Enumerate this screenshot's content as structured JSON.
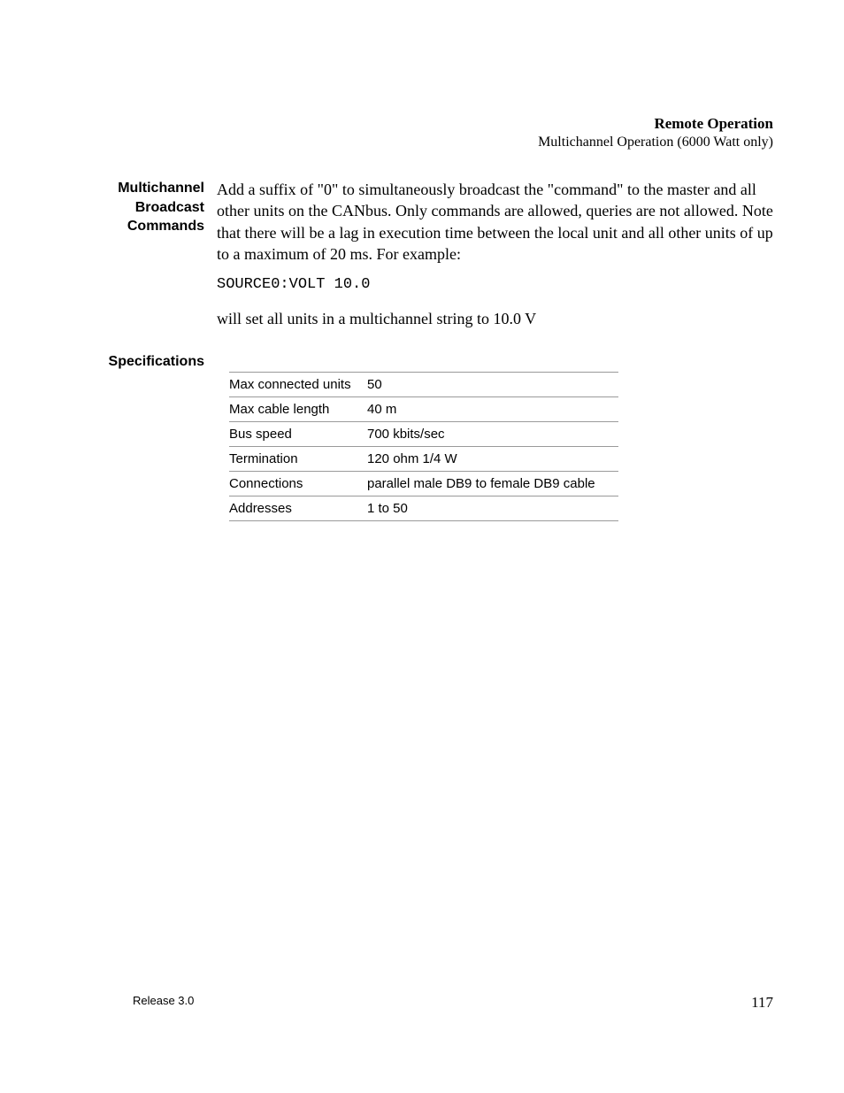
{
  "header": {
    "title": "Remote Operation",
    "subtitle": "Multichannel Operation (6000 Watt only)"
  },
  "section_broadcast": {
    "heading": "Multichannel Broadcast Commands",
    "para1": "Add a suffix of \"0\" to simultaneously broadcast the \"command\" to the master and all other units on the CANbus. Only commands are allowed, queries are not allowed. Note that there will be a lag in execution time between the local unit and all other units of up to a maximum of 20 ms. For example:",
    "code": "SOURCE0:VOLT 10.0",
    "para2": "will set all units in a multichannel string to 10.0 V"
  },
  "section_specs": {
    "heading": "Specifications",
    "rows": [
      {
        "label": "Max connected units",
        "value": "50"
      },
      {
        "label": "Max cable length",
        "value": "40 m"
      },
      {
        "label": "Bus speed",
        "value": "700 kbits/sec"
      },
      {
        "label": "Termination",
        "value": "120 ohm 1/4 W"
      },
      {
        "label": "Connections",
        "value": "parallel male DB9 to female DB9 cable"
      },
      {
        "label": "Addresses",
        "value": "1 to 50"
      }
    ]
  },
  "footer": {
    "release": "Release 3.0",
    "page": "117"
  }
}
